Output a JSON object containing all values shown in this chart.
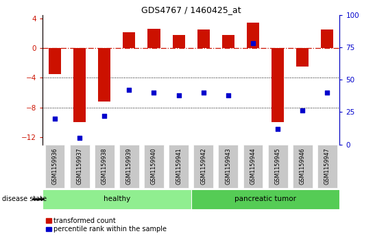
{
  "title": "GDS4767 / 1460425_at",
  "samples": [
    "GSM1159936",
    "GSM1159937",
    "GSM1159938",
    "GSM1159939",
    "GSM1159940",
    "GSM1159941",
    "GSM1159942",
    "GSM1159943",
    "GSM1159944",
    "GSM1159945",
    "GSM1159946",
    "GSM1159947"
  ],
  "bar_values": [
    -3.5,
    -10.0,
    -7.2,
    2.2,
    2.6,
    1.8,
    2.5,
    1.8,
    3.5,
    -10.0,
    -2.5,
    2.5
  ],
  "percentile_values": [
    20,
    5,
    22,
    42,
    40,
    38,
    40,
    38,
    78,
    12,
    26,
    40
  ],
  "bar_color": "#CC1100",
  "percentile_color": "#0000CC",
  "ylim_left": [
    -13,
    4.5
  ],
  "ylim_right": [
    0,
    100
  ],
  "yticks_left": [
    4,
    0,
    -4,
    -8,
    -12
  ],
  "yticks_right": [
    100,
    75,
    50,
    25,
    0
  ],
  "dotted_lines": [
    -4,
    -8
  ],
  "healthy_label": "healthy",
  "tumor_label": "pancreatic tumor",
  "disease_state_label": "disease state",
  "legend_bar_label": "transformed count",
  "legend_pct_label": "percentile rank within the sample",
  "bar_width": 0.5,
  "healthy_color": "#90EE90",
  "tumor_color": "#55CC55",
  "xlabel_bg_color": "#C8C8C8"
}
